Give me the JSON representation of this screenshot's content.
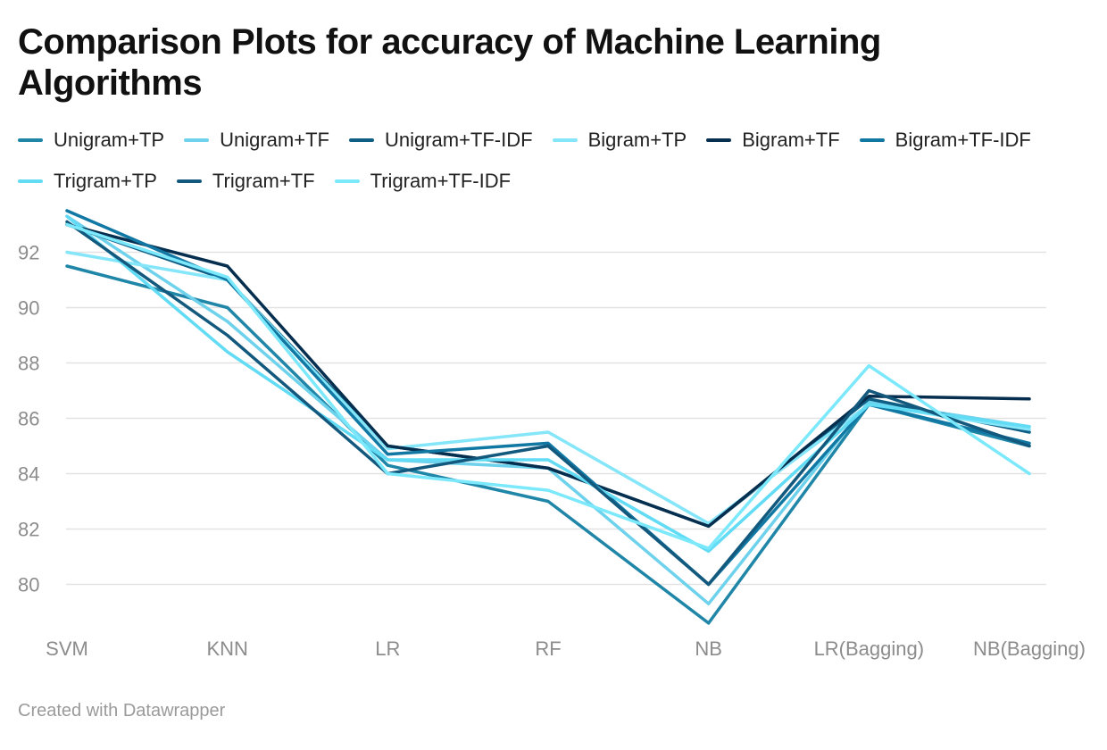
{
  "chart_data": {
    "type": "line",
    "title": "Comparison Plots for accuracy of Machine Learning Algorithms",
    "xlabel": "",
    "ylabel": "",
    "categories": [
      "SVM",
      "KNN",
      "LR",
      "RF",
      "NB",
      "LR(Bagging)",
      "NB(Bagging)"
    ],
    "yticks": [
      80,
      82,
      84,
      86,
      88,
      90,
      92
    ],
    "ylim": [
      78.5,
      93.5
    ],
    "grid": true,
    "legend_position": "top",
    "series": [
      {
        "name": "Unigram+TP",
        "color": "#1f86a8",
        "values": [
          91.5,
          90.0,
          84.3,
          83.0,
          78.6,
          86.5,
          85.0
        ]
      },
      {
        "name": "Unigram+TF",
        "color": "#6fd2ec",
        "values": [
          93.3,
          89.5,
          84.5,
          84.2,
          79.3,
          86.6,
          85.7
        ]
      },
      {
        "name": "Unigram+TF-IDF",
        "color": "#0f5f85",
        "values": [
          93.0,
          91.0,
          85.0,
          84.2,
          82.1,
          86.7,
          85.5
        ]
      },
      {
        "name": "Bigram+TP",
        "color": "#85e6fa",
        "values": [
          92.0,
          91.0,
          84.9,
          85.5,
          82.2,
          86.5,
          85.6
        ]
      },
      {
        "name": "Bigram+TF",
        "color": "#062e4f",
        "values": [
          93.0,
          91.5,
          85.0,
          84.2,
          82.1,
          86.8,
          86.7
        ]
      },
      {
        "name": "Bigram+TF-IDF",
        "color": "#1178a4",
        "values": [
          93.5,
          91.0,
          84.7,
          85.1,
          80.0,
          86.5,
          85.1
        ]
      },
      {
        "name": "Trigram+TP",
        "color": "#62dbf5",
        "values": [
          93.3,
          88.4,
          84.5,
          84.5,
          81.2,
          86.5,
          85.7
        ]
      },
      {
        "name": "Trigram+TF",
        "color": "#13587d",
        "values": [
          93.1,
          89.0,
          84.0,
          85.0,
          80.0,
          87.0,
          85.0
        ]
      },
      {
        "name": "Trigram+TF-IDF",
        "color": "#7be9fb",
        "values": [
          93.0,
          91.1,
          84.0,
          83.4,
          81.3,
          87.9,
          84.0
        ]
      }
    ]
  },
  "footer": {
    "credit": "Created with Datawrapper"
  }
}
